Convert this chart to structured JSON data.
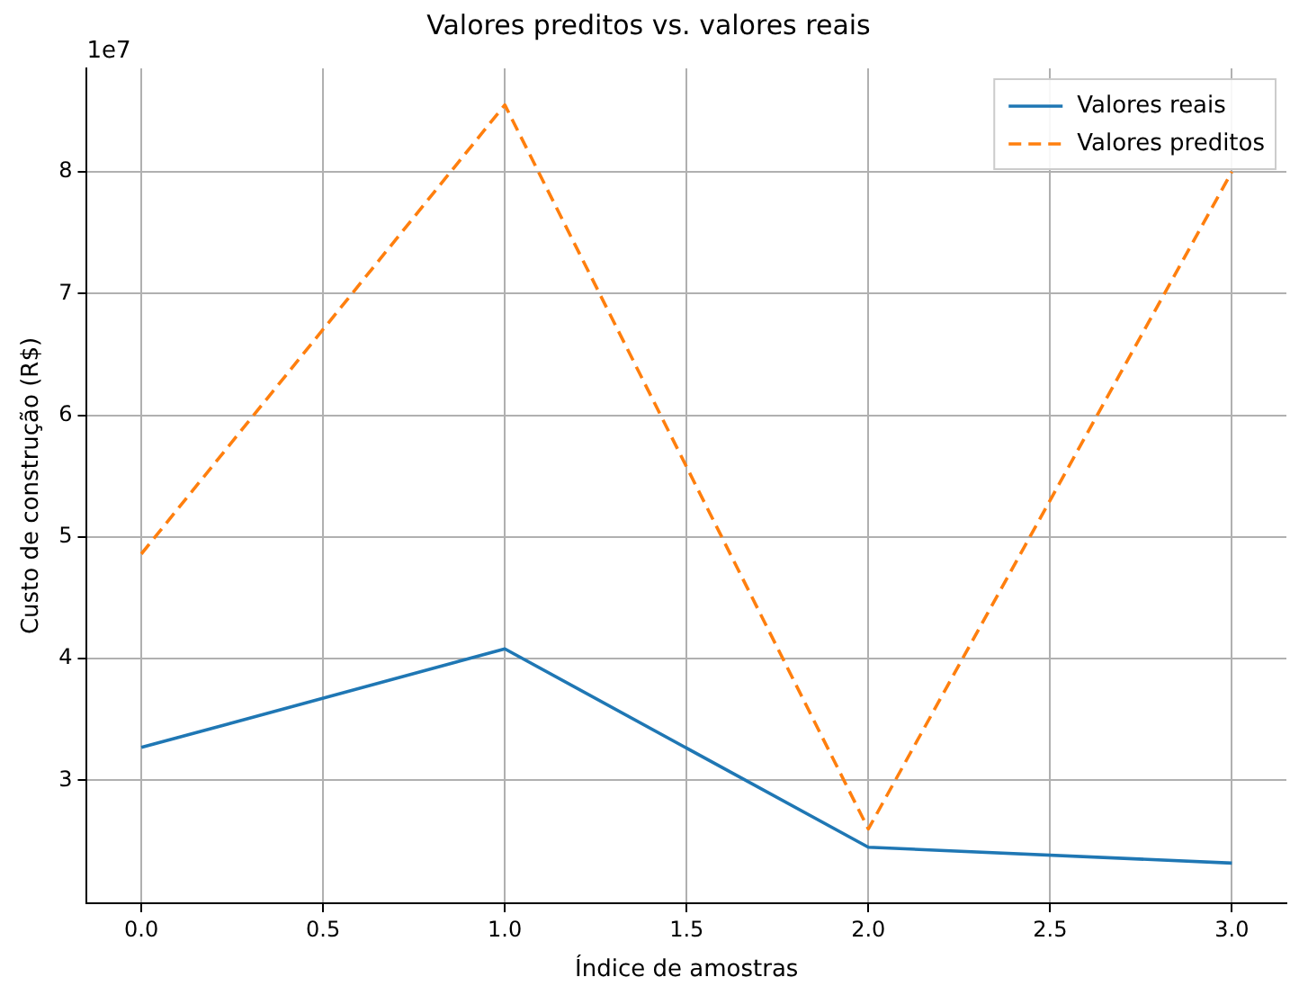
{
  "chart_data": {
    "type": "line",
    "title": "Valores preditos vs. valores reais",
    "xlabel": "Índice de amostras",
    "ylabel": "Custo de construção (R$)",
    "x": [
      0,
      1,
      2,
      3
    ],
    "series": [
      {
        "name": "Valores reais",
        "color": "#1f77b4",
        "values": [
          3.27,
          4.08,
          2.45,
          2.32
        ],
        "line_style": "solid"
      },
      {
        "name": "Valores preditos",
        "color": "#ff7f0e",
        "values": [
          4.86,
          8.55,
          2.6,
          8.0
        ],
        "line_style": "dashed"
      }
    ],
    "xlim": [
      -0.15,
      3.15
    ],
    "ylim": [
      1.99,
      8.85
    ],
    "xticks": [
      {
        "value": 0,
        "label": "0.0"
      },
      {
        "value": 0.5,
        "label": "0.5"
      },
      {
        "value": 1,
        "label": "1.0"
      },
      {
        "value": 1.5,
        "label": "1.5"
      },
      {
        "value": 2,
        "label": "2.0"
      },
      {
        "value": 2.5,
        "label": "2.5"
      },
      {
        "value": 3,
        "label": "3.0"
      }
    ],
    "yticks": [
      3,
      4,
      5,
      6,
      7,
      8
    ],
    "annotations": [
      "1e7"
    ],
    "grid": true,
    "legend": "top right",
    "marker": "none"
  }
}
